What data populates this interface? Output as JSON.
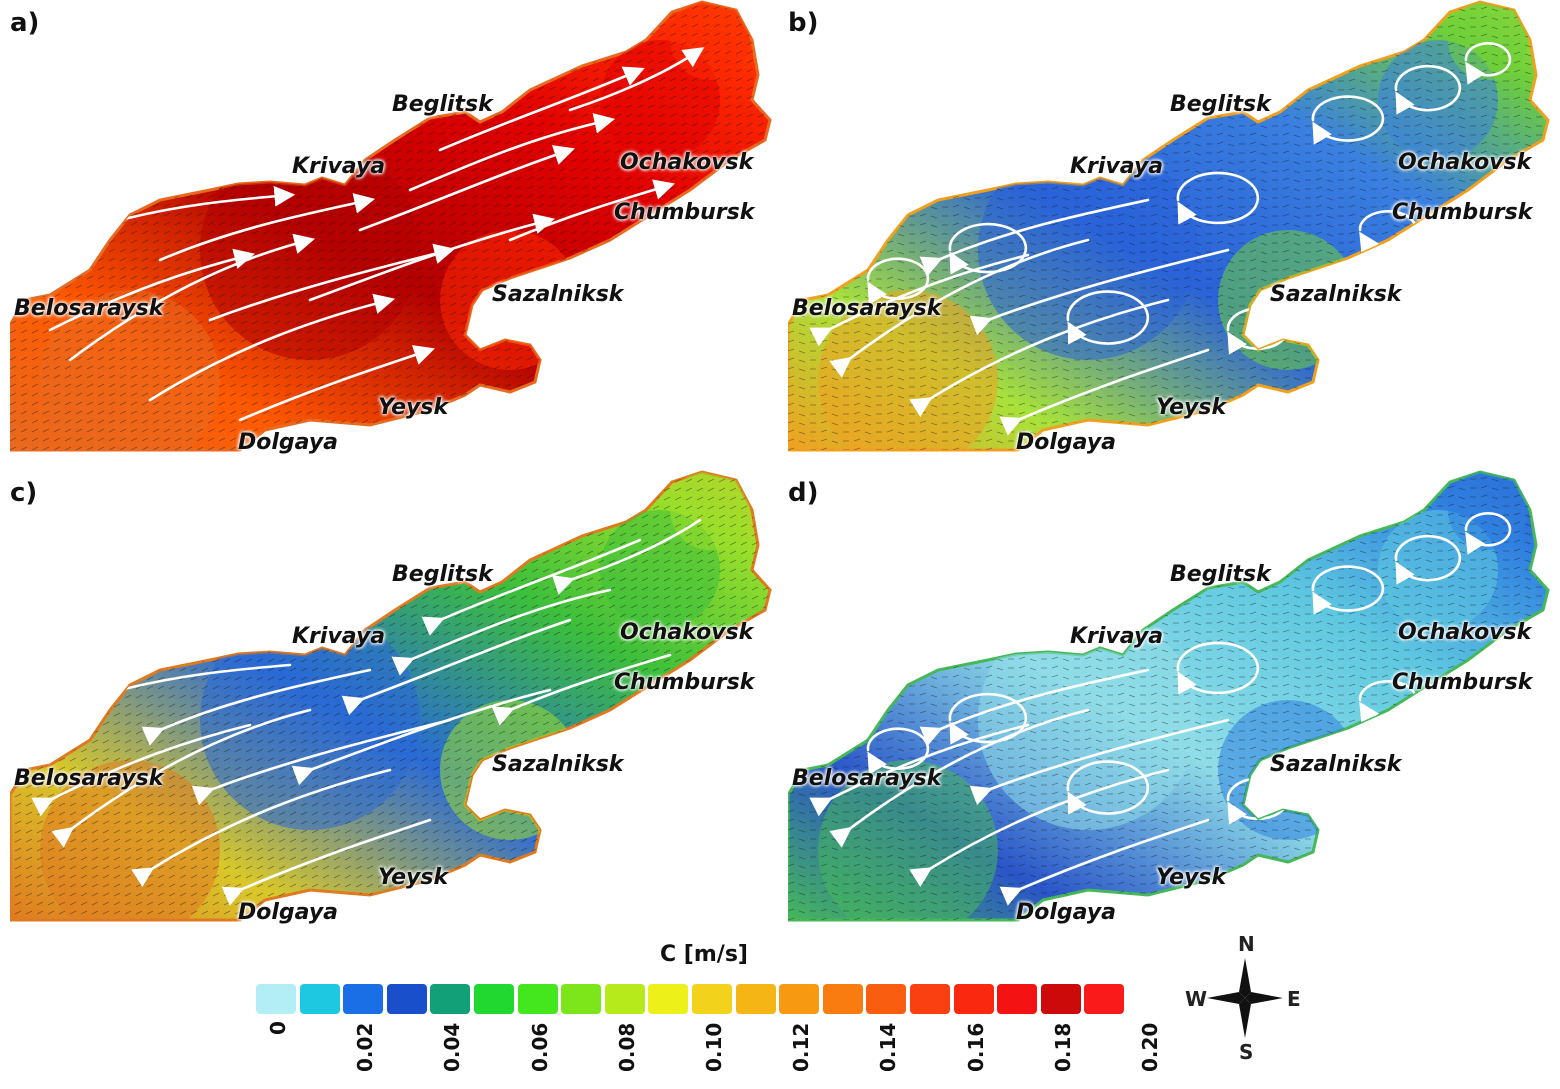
{
  "panels": [
    {
      "letter": "a)",
      "palette": [
        "#b30000",
        "#e00000",
        "#ff2a00",
        "#ff5a00",
        "#e86a20"
      ],
      "flow": "east"
    },
    {
      "letter": "b)",
      "palette": [
        "#2a62d8",
        "#3a80e0",
        "#6fcf3a",
        "#a8e23a",
        "#f0a020"
      ],
      "flow": "gyres"
    },
    {
      "letter": "c)",
      "palette": [
        "#2a6ad6",
        "#3cbf3c",
        "#9adf2a",
        "#d9c82a",
        "#e07a20"
      ],
      "flow": "west"
    },
    {
      "letter": "d)",
      "palette": [
        "#8fdde8",
        "#5ec8e0",
        "#2f7fe0",
        "#2a55c8",
        "#46b85a"
      ],
      "flow": "gyres"
    }
  ],
  "towns": {
    "beglitsk": "Beglitsk",
    "krivaya": "Krivaya",
    "ochakovsk": "Ochakovsk",
    "chumbursk": "Chumbursk",
    "belosaraysk": "Belosaraysk",
    "sazalniksk": "Sazalniksk",
    "yeysk": "Yeysk",
    "dolgaya": "Dolgaya"
  },
  "legend": {
    "title": "C [m/s]",
    "colors": [
      "#b3edf5",
      "#1ec8e0",
      "#1a6ee6",
      "#1a4fcc",
      "#11a077",
      "#21d830",
      "#44e61e",
      "#7de61a",
      "#b6ea1a",
      "#eef01a",
      "#f2d21a",
      "#f5b514",
      "#f79a12",
      "#f87c10",
      "#f95e10",
      "#fa4010",
      "#fb2810",
      "#f41212",
      "#cc0a0a",
      "#fb1a1a"
    ],
    "ticks": [
      "0",
      "0.02",
      "0.04",
      "0.06",
      "0.08",
      "0.10",
      "0.12",
      "0.14",
      "0.16",
      "0.18",
      "0.20"
    ]
  },
  "compass": {
    "n": "N",
    "s": "S",
    "e": "E",
    "w": "W"
  }
}
